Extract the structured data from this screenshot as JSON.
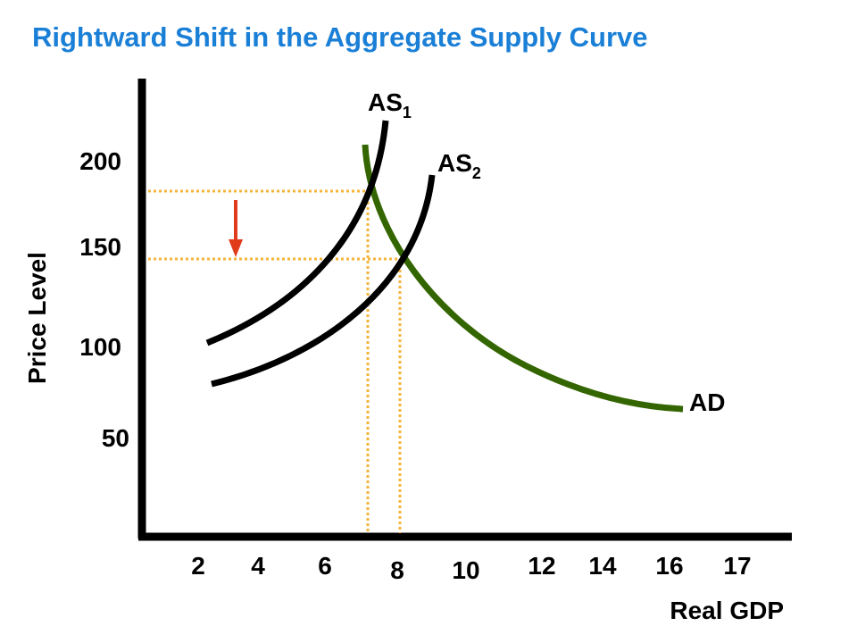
{
  "chart_data": {
    "type": "line",
    "title": "Rightward Shift in the Aggregate Supply Curve",
    "xlabel": "Real GDP",
    "ylabel": "Price Level",
    "x_ticks": [
      "2",
      "4",
      "6",
      "8",
      "10",
      "12",
      "14",
      "16",
      "17"
    ],
    "y_ticks": [
      "50",
      "100",
      "150",
      "200"
    ],
    "series": [
      {
        "name": "AS",
        "subscript": "1",
        "color": "#000000"
      },
      {
        "name": "AS",
        "subscript": "2",
        "color": "#000000"
      },
      {
        "name": "AD",
        "subscript": "",
        "color": "#336600"
      }
    ],
    "guide_color": "#f5b43a",
    "arrow_color": "#e03c1c",
    "grid": false,
    "legend": "none"
  }
}
